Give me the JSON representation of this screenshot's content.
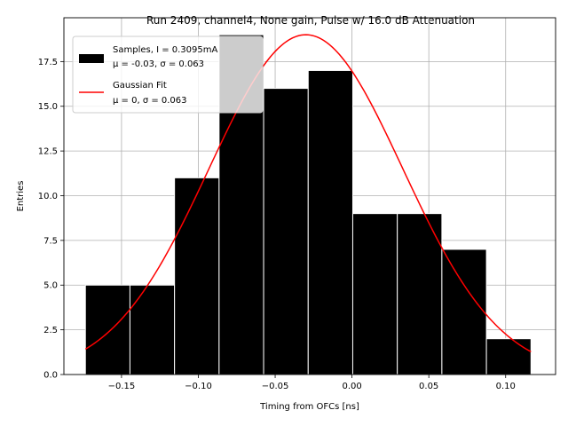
{
  "chart_data": {
    "type": "bar",
    "title": "Run 2409, channel4, None gain, Pulse w/ 16.0 dB Attenuation",
    "xlabel": "Timing from OFCs [ns]",
    "ylabel": "Entries",
    "xlim": [
      -0.1875,
      0.1325
    ],
    "ylim": [
      0,
      19.95
    ],
    "grid": true,
    "xticks": [
      -0.15,
      -0.1,
      -0.05,
      0.0,
      0.05,
      0.1
    ],
    "xtick_labels": [
      "−0.15",
      "−0.10",
      "−0.05",
      "0.00",
      "0.05",
      "0.10"
    ],
    "yticks": [
      0.0,
      2.5,
      5.0,
      7.5,
      10.0,
      12.5,
      15.0,
      17.5
    ],
    "ytick_labels": [
      "0.0",
      "2.5",
      "5.0",
      "7.5",
      "10.0",
      "12.5",
      "15.0",
      "17.5"
    ],
    "bins": [
      {
        "x0": -0.1735,
        "x1": -0.1445,
        "count": 5
      },
      {
        "x0": -0.1445,
        "x1": -0.1155,
        "count": 5
      },
      {
        "x0": -0.1155,
        "x1": -0.0865,
        "count": 11
      },
      {
        "x0": -0.0865,
        "x1": -0.0575,
        "count": 19
      },
      {
        "x0": -0.0575,
        "x1": -0.0285,
        "count": 16
      },
      {
        "x0": -0.0285,
        "x1": 0.0005,
        "count": 17
      },
      {
        "x0": 0.0005,
        "x1": 0.0295,
        "count": 9
      },
      {
        "x0": 0.0295,
        "x1": 0.0585,
        "count": 9
      },
      {
        "x0": 0.0585,
        "x1": 0.0875,
        "count": 7
      },
      {
        "x0": 0.0875,
        "x1": 0.1165,
        "count": 2
      }
    ],
    "fit": {
      "name": "Gaussian Fit",
      "amplitude": 19.0,
      "mean": -0.03,
      "sigma": 0.063,
      "x_range": [
        -0.1735,
        0.1165
      ],
      "color": "#ff0000"
    },
    "bar_color": "#000000",
    "bar_edge_color": "#ffffff",
    "legend": {
      "placement": "top-left",
      "entries": [
        {
          "kind": "bar",
          "line1": "Samples, I = 0.3095mA",
          "line2": "μ = -0.03, σ = 0.063"
        },
        {
          "kind": "line",
          "line1": "Gaussian Fit",
          "line2": "μ = 0, σ = 0.063"
        }
      ]
    }
  }
}
